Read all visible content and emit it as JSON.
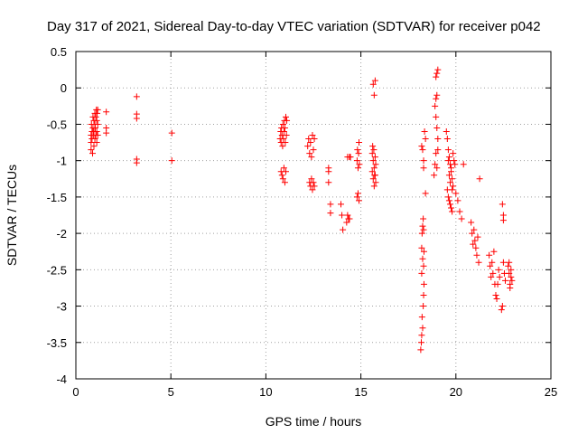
{
  "chart_data": {
    "type": "scatter",
    "title": "Day 317 of 2021, Sidereal Day-to-day VTEC variation (SDTVAR) for receiver p042",
    "xlabel": "GPS time / hours",
    "ylabel": "SDTVAR / TECUs",
    "xlim": [
      0,
      25
    ],
    "ylim": [
      -4,
      0.5
    ],
    "xticks": [
      0,
      5,
      10,
      15,
      20,
      25
    ],
    "xtick_labels": [
      "0",
      "5",
      "10",
      "15",
      "20",
      "25"
    ],
    "yticks": [
      0.5,
      0,
      -0.5,
      -1,
      -1.5,
      -2,
      -2.5,
      -3,
      -3.5,
      -4
    ],
    "ytick_labels": [
      "0.5",
      "0",
      "-0.5",
      "-1",
      "-1.5",
      "-2",
      "-2.5",
      "-3",
      "-3.5",
      "-4"
    ],
    "grid": true,
    "marker": "+",
    "marker_color": "#ff0000",
    "series": [
      {
        "name": "SDTVAR",
        "x": [
          0.8,
          0.8,
          0.8,
          0.82,
          0.85,
          0.85,
          0.88,
          0.9,
          0.9,
          0.92,
          0.95,
          0.95,
          0.95,
          1.0,
          1.0,
          1.0,
          1.02,
          1.05,
          1.05,
          1.08,
          1.1,
          1.1,
          1.1,
          1.12,
          1.15,
          1.15,
          1.15,
          1.6,
          1.6,
          1.6,
          3.2,
          3.2,
          3.2,
          3.2,
          3.2,
          5.05,
          5.05,
          10.75,
          10.78,
          10.8,
          10.82,
          10.85,
          10.88,
          10.9,
          10.92,
          10.95,
          10.98,
          11.0,
          11.02,
          11.05,
          11.08,
          11.1,
          10.8,
          10.85,
          10.9,
          10.95,
          11.0,
          11.05,
          12.2,
          12.25,
          12.3,
          12.35,
          12.4,
          12.45,
          12.5,
          12.55,
          12.3,
          12.35,
          12.4,
          12.45,
          12.5,
          12.55,
          13.3,
          13.3,
          13.3,
          13.4,
          13.4,
          13.95,
          14.0,
          14.05,
          14.25,
          14.3,
          14.35,
          14.4,
          14.45,
          14.3,
          14.4,
          14.8,
          14.82,
          14.85,
          14.88,
          14.9,
          14.92,
          14.8,
          14.85,
          14.9,
          15.6,
          15.62,
          15.65,
          15.68,
          15.7,
          15.72,
          15.75,
          15.78,
          15.6,
          15.65,
          15.7,
          15.75,
          15.78,
          15.65,
          15.7,
          15.75,
          18.15,
          18.18,
          18.2,
          18.22,
          18.25,
          18.28,
          18.3,
          18.32,
          18.2,
          18.25,
          18.3,
          18.2,
          18.22,
          18.25,
          18.28,
          18.3,
          18.32,
          18.2,
          18.25,
          18.3,
          18.3,
          18.35,
          18.4,
          18.4,
          18.85,
          18.9,
          18.95,
          19.0,
          19.05,
          18.9,
          18.95,
          19.0,
          19.05,
          18.95,
          19.0,
          19.05,
          18.95,
          19.0,
          19.5,
          19.55,
          19.6,
          19.65,
          19.7,
          19.75,
          19.8,
          19.85,
          19.55,
          19.6,
          19.65,
          19.7,
          19.75,
          19.8,
          19.6,
          19.65,
          19.7,
          19.75,
          19.8,
          19.85,
          19.9,
          19.95,
          20.0,
          20.1,
          20.2,
          20.3,
          20.4,
          20.8,
          20.85,
          20.9,
          20.95,
          21.0,
          21.05,
          21.1,
          21.15,
          21.2,
          21.25,
          21.75,
          21.8,
          21.85,
          21.9,
          21.95,
          22.0,
          22.05,
          22.1,
          22.15,
          22.2,
          22.25,
          22.3,
          22.4,
          22.45,
          22.5,
          22.55,
          22.6,
          22.45,
          22.5,
          22.5,
          22.75,
          22.8,
          22.85,
          22.9,
          22.95,
          22.8,
          22.85,
          22.9
        ],
        "y": [
          -0.65,
          -0.75,
          -0.85,
          -0.5,
          -0.6,
          -0.7,
          -0.9,
          -0.4,
          -0.55,
          -0.65,
          -0.45,
          -0.6,
          -0.8,
          -0.35,
          -0.5,
          -0.7,
          -0.55,
          -0.4,
          -0.65,
          -0.3,
          -0.45,
          -0.6,
          -0.75,
          -0.35,
          -0.5,
          -0.65,
          -0.3,
          -0.33,
          -0.55,
          -0.62,
          -0.12,
          -0.36,
          -0.42,
          -0.98,
          -1.03,
          -0.62,
          -1.0,
          -0.7,
          -0.6,
          -0.75,
          -0.55,
          -0.65,
          -0.8,
          -0.5,
          -0.7,
          -0.6,
          -0.45,
          -0.55,
          -0.75,
          -0.4,
          -0.65,
          -0.45,
          -1.15,
          -1.2,
          -1.25,
          -1.1,
          -1.3,
          -1.15,
          -0.8,
          -0.7,
          -0.9,
          -0.75,
          -0.95,
          -0.65,
          -0.85,
          -0.7,
          -1.3,
          -1.35,
          -1.25,
          -1.4,
          -1.3,
          -1.35,
          -1.1,
          -1.15,
          -1.3,
          -1.6,
          -1.72,
          -1.6,
          -1.75,
          -1.95,
          -1.85,
          -1.75,
          -1.8,
          -0.95,
          -0.95,
          -0.95,
          -1.8,
          -1.0,
          -0.85,
          -1.1,
          -0.9,
          -0.75,
          -1.05,
          -1.5,
          -1.45,
          -1.55,
          -0.9,
          -0.8,
          -1.0,
          -0.85,
          -1.1,
          -1.2,
          -0.95,
          -1.3,
          -1.15,
          -1.25,
          -1.35,
          -1.2,
          -1.05,
          0.05,
          -0.1,
          0.1,
          -3.6,
          -3.5,
          -3.4,
          -3.15,
          -3.3,
          -3.0,
          -2.85,
          -2.7,
          -2.55,
          -2.35,
          -2.45,
          -2.2,
          -2.0,
          -1.9,
          -1.8,
          -1.95,
          -2.25,
          -0.8,
          -0.85,
          -1.0,
          -1.1,
          -0.6,
          -0.7,
          -1.45,
          -1.2,
          -1.05,
          -0.9,
          -1.1,
          -0.85,
          -0.25,
          -0.4,
          -0.55,
          -0.7,
          0.15,
          0.2,
          0.25,
          -0.15,
          -0.1,
          -0.6,
          -0.7,
          -0.85,
          -0.95,
          -1.05,
          -1.15,
          -1.25,
          -1.35,
          -1.4,
          -1.5,
          -1.55,
          -1.6,
          -1.65,
          -1.7,
          -1.0,
          -1.2,
          -1.3,
          -1.1,
          -1.4,
          -0.9,
          -1.0,
          -1.05,
          -1.45,
          -1.55,
          -1.7,
          -1.8,
          -1.05,
          -1.85,
          -2.0,
          -2.15,
          -1.95,
          -2.1,
          -2.2,
          -2.3,
          -2.05,
          -2.4,
          -1.25,
          -2.3,
          -2.45,
          -2.6,
          -2.4,
          -2.55,
          -2.25,
          -2.7,
          -2.85,
          -2.9,
          -2.7,
          -2.5,
          -2.6,
          -3.05,
          -3.0,
          -2.4,
          -2.55,
          -2.65,
          -1.6,
          -1.75,
          -1.82,
          -2.45,
          -2.55,
          -2.7,
          -2.6,
          -2.65,
          -2.4,
          -2.75,
          -2.5
        ]
      }
    ]
  }
}
